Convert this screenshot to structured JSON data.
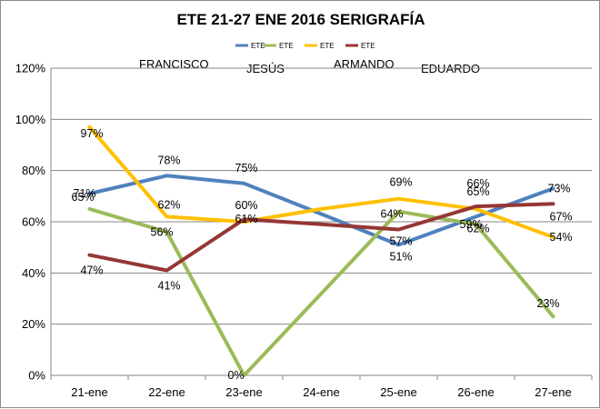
{
  "chart_data": {
    "type": "line",
    "title": "ETE  21-27 ENE 2016 SERIGRAFÍA",
    "categories": [
      "21-ene",
      "22-ene",
      "23-ene",
      "24-ene",
      "25-ene",
      "26-ene",
      "27-ene"
    ],
    "ylim": [
      0,
      120
    ],
    "yticks": [
      0,
      20,
      40,
      60,
      80,
      100,
      120
    ],
    "ytick_labels": [
      "0%",
      "20%",
      "40%",
      "60%",
      "80%",
      "100%",
      "120%"
    ],
    "grid": true,
    "legend_position": "top",
    "series": [
      {
        "name": "ETE",
        "person": "FRANCISCO",
        "color": "#4F81BD",
        "values": [
          71,
          78,
          75,
          63,
          51,
          62,
          73
        ],
        "labels": [
          "71%",
          "78%",
          "75%",
          null,
          "51%",
          "62%",
          "73%"
        ]
      },
      {
        "name": "ETE",
        "person": "JESÚS",
        "color": "#9BBB59",
        "values": [
          65,
          56,
          0,
          32,
          64,
          59,
          23
        ],
        "labels": [
          "65%",
          "56%",
          "0%",
          null,
          "64%",
          "59%",
          "23%"
        ]
      },
      {
        "name": "ETE",
        "person": "ARMANDO",
        "color": "#FFC000",
        "values": [
          97,
          62,
          60,
          65,
          69,
          65,
          54
        ],
        "labels": [
          "97%",
          "62%",
          "60%",
          null,
          "69%",
          "65%",
          "54%"
        ]
      },
      {
        "name": "ETE",
        "person": "EDUARDO",
        "color": "#953735",
        "values": [
          47,
          41,
          61,
          59,
          57,
          66,
          67
        ],
        "labels": [
          "47%",
          "41%",
          "61%",
          null,
          "57%",
          "66%",
          "67%"
        ]
      }
    ]
  }
}
